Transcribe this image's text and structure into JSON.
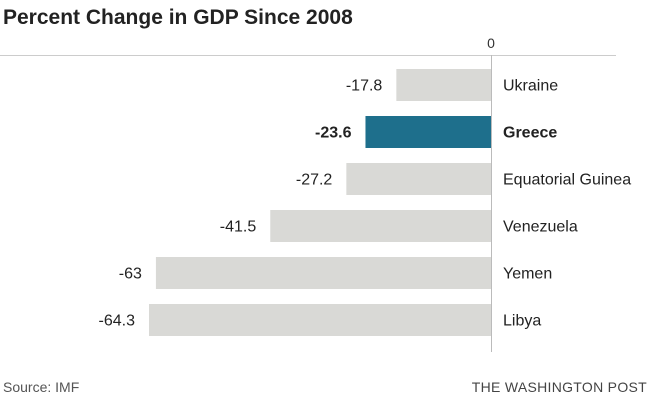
{
  "chart_data": {
    "type": "bar",
    "orientation": "horizontal",
    "title": "Percent Change in GDP Since 2008",
    "categories": [
      "Ukraine",
      "Greece",
      "Equatorial Guinea",
      "Venezuela",
      "Yemen",
      "Libya"
    ],
    "values": [
      -17.8,
      -23.6,
      -27.2,
      -41.5,
      -63,
      -64.3
    ],
    "value_labels": [
      "-17.8",
      "-23.6",
      "-27.2",
      "-41.5",
      "-63",
      "-64.3"
    ],
    "highlight_index": 1,
    "xlim": [
      -72,
      0
    ],
    "x_ticks": [
      0
    ],
    "x_tick_labels": [
      "0"
    ],
    "grid": false,
    "legend": "none",
    "colors": {
      "bar": "#d9d9d6",
      "highlight": "#1e6f8c",
      "axis": "#cccccc"
    }
  },
  "footer": {
    "source": "Source: IMF",
    "credit": "THE WASHINGTON POST"
  }
}
